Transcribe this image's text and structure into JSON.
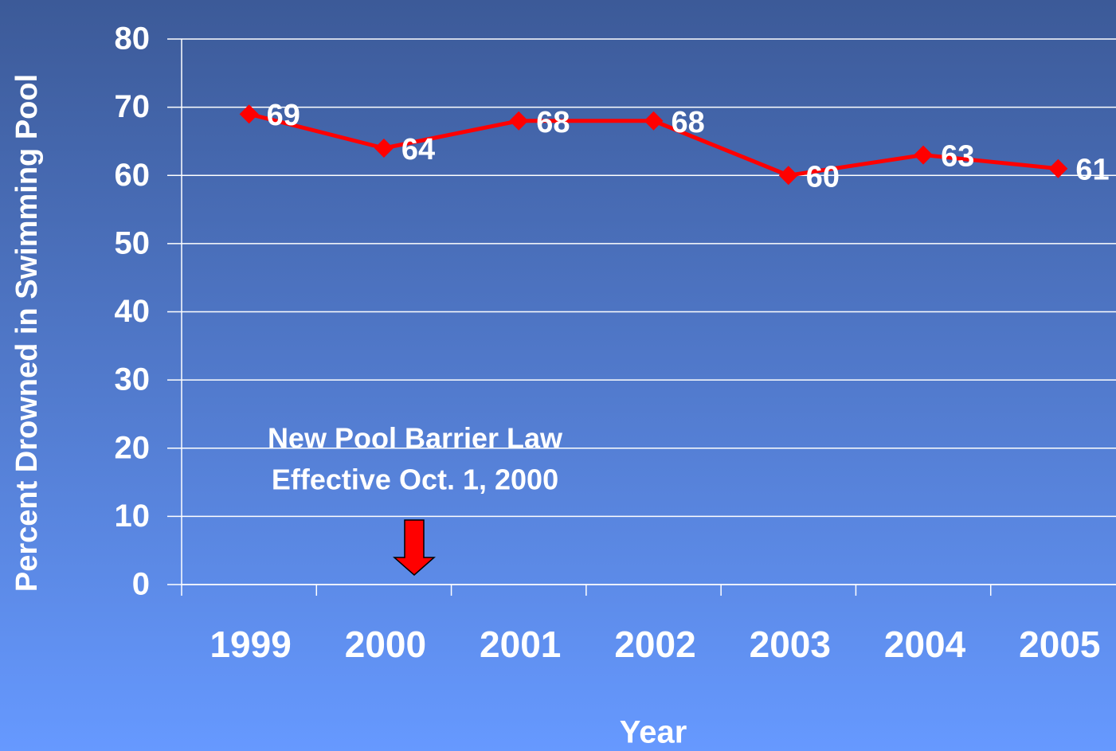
{
  "chart_data": {
    "type": "line",
    "y_label": "Percent Drowned in Swimming Pool",
    "x_label": "Year",
    "annotation": [
      "New Pool Barrier Law",
      "Effective Oct. 1, 2000"
    ],
    "categories": [
      "1999",
      "2000",
      "2001",
      "2002",
      "2003",
      "2004",
      "2005"
    ],
    "series": [
      {
        "name": "Percent Drowned in Swimming Pool",
        "color": "#ff0000",
        "values": [
          69,
          64,
          68,
          68,
          60,
          63,
          61
        ]
      }
    ],
    "ylim": [
      0,
      80
    ],
    "yticks": [
      0,
      10,
      20,
      30,
      40,
      50,
      60,
      70,
      80
    ],
    "grid": true
  }
}
